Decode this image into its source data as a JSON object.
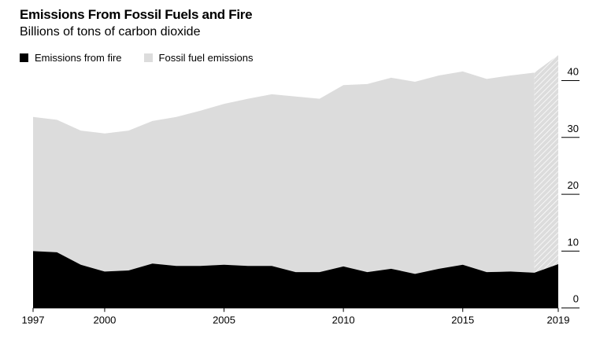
{
  "chart_data": {
    "type": "area",
    "stacked": true,
    "title": "Emissions From Fossil Fuels and Fire",
    "subtitle": "Billions of tons of carbon dioxide",
    "x": [
      1997,
      1998,
      1999,
      2000,
      2001,
      2002,
      2003,
      2004,
      2005,
      2006,
      2007,
      2008,
      2009,
      2010,
      2011,
      2012,
      2013,
      2014,
      2015,
      2016,
      2017,
      2018,
      2019
    ],
    "series": [
      {
        "name": "Emissions from fire",
        "color": "#000000",
        "values": [
          10.0,
          9.8,
          7.6,
          6.4,
          6.6,
          7.8,
          7.4,
          7.4,
          7.6,
          7.4,
          7.4,
          6.3,
          6.3,
          7.3,
          6.3,
          6.9,
          6.0,
          6.9,
          7.6,
          6.3,
          6.4,
          6.2,
          7.7
        ]
      },
      {
        "name": "Fossil fuel emissions",
        "color": "#dcdcdc",
        "values": [
          23.6,
          23.3,
          23.6,
          24.3,
          24.6,
          25.1,
          26.2,
          27.3,
          28.3,
          29.4,
          30.2,
          30.9,
          30.5,
          31.9,
          33.1,
          33.6,
          33.8,
          34.0,
          34.0,
          34.0,
          34.5,
          35.2,
          36.8
        ]
      }
    ],
    "hatched_range": [
      2018,
      2019
    ],
    "xticks": [
      "1997",
      "2000",
      "2005",
      "2010",
      "2015",
      "2019"
    ],
    "yticks": [
      "0",
      "10",
      "20",
      "30",
      "40"
    ],
    "ylim": [
      0,
      45
    ],
    "xlim": [
      1997,
      2019
    ],
    "axis_side_y": "right",
    "grid": false,
    "legend_position": "top-left"
  }
}
